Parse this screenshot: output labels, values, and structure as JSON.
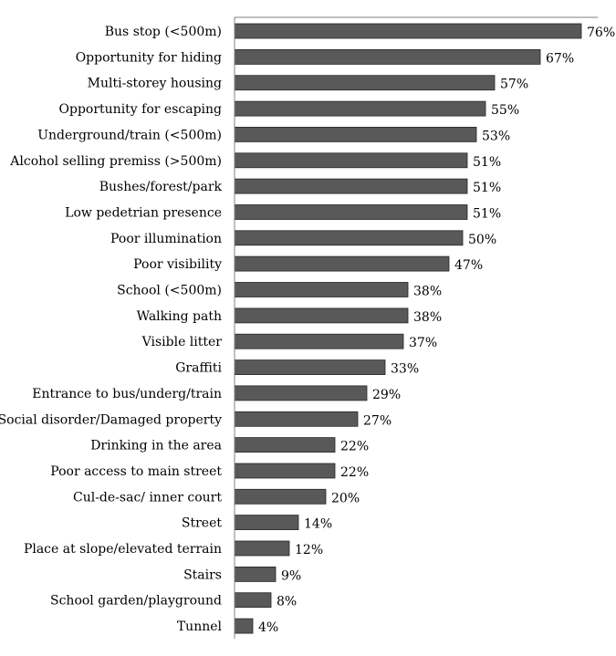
{
  "chart_data": {
    "type": "bar",
    "orientation": "horizontal",
    "categories": [
      "Bus stop (<500m)",
      "Opportunity for hiding",
      "Multi-storey housing",
      "Opportunity for escaping",
      "Underground/train (<500m)",
      "Alcohol selling premiss (>500m)",
      "Bushes/forest/park",
      "Low pedetrian presence",
      "Poor illumination",
      "Poor visibility",
      "School (<500m)",
      "Walking path",
      "Visible litter",
      "Graffiti",
      "Entrance to bus/underg/train",
      "Social disorder/Damaged property",
      "Drinking in the area",
      "Poor access to main street",
      "Cul-de-sac/ inner court",
      "Street",
      "Place at slope/elevated terrain",
      "Stairs",
      "School garden/playground",
      "Tunnel"
    ],
    "values": [
      76,
      67,
      57,
      55,
      53,
      51,
      51,
      51,
      50,
      47,
      38,
      38,
      37,
      33,
      29,
      27,
      22,
      22,
      20,
      14,
      12,
      9,
      8,
      4
    ],
    "value_labels": [
      "76%",
      "67%",
      "57%",
      "55%",
      "53%",
      "51%",
      "51%",
      "51%",
      "50%",
      "47%",
      "38%",
      "38%",
      "37%",
      "33%",
      "29%",
      "27%",
      "22%",
      "22%",
      "20%",
      "14%",
      "12%",
      "9%",
      "8%",
      "4%"
    ],
    "xlim": [
      0,
      80
    ],
    "bar_color": "#595959",
    "grid": false,
    "title": "",
    "xlabel": "",
    "ylabel": ""
  }
}
